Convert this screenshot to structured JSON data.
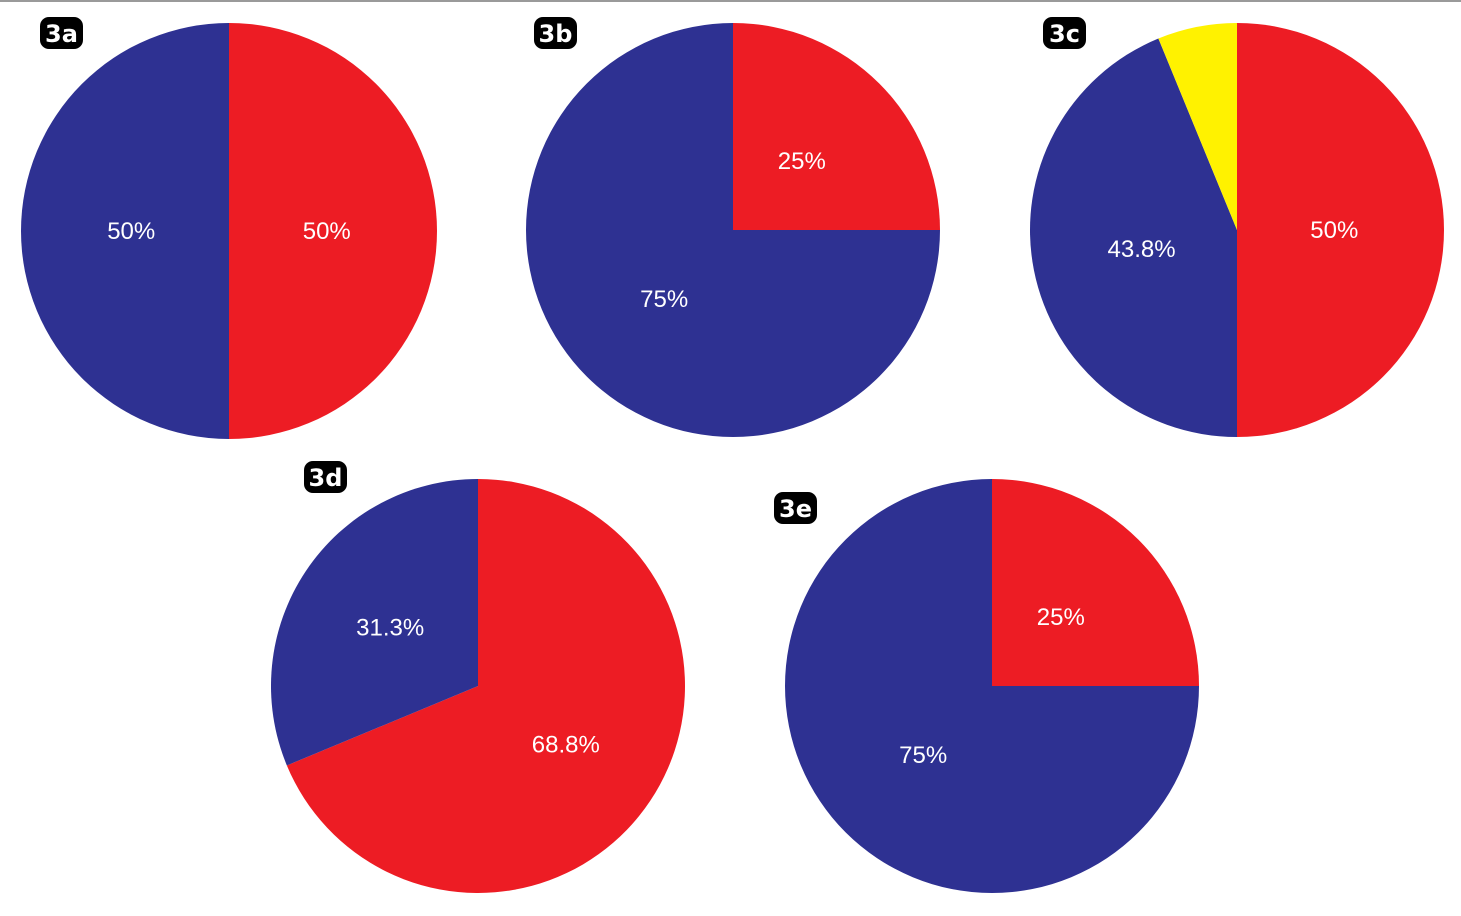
{
  "colors": {
    "red": "#ED1C24",
    "blue": "#2E3192",
    "yellow": "#FFF200",
    "badge": "#000000",
    "label_text": "#FFFFFF"
  },
  "chart_data": [
    {
      "type": "pie",
      "panel": "3a",
      "slices": [
        {
          "label": "50%",
          "value": 50,
          "color": "#ED1C24"
        },
        {
          "label": "50%",
          "value": 50,
          "color": "#2E3192"
        }
      ]
    },
    {
      "type": "pie",
      "panel": "3b",
      "slices": [
        {
          "label": "25%",
          "value": 25,
          "color": "#ED1C24"
        },
        {
          "label": "75%",
          "value": 75,
          "color": "#2E3192"
        }
      ]
    },
    {
      "type": "pie",
      "panel": "3c",
      "slices": [
        {
          "label": "50%",
          "value": 50,
          "color": "#ED1C24"
        },
        {
          "label": "43.8%",
          "value": 43.8,
          "color": "#2E3192"
        },
        {
          "label": "",
          "value": 6.2,
          "color": "#FFF200"
        }
      ]
    },
    {
      "type": "pie",
      "panel": "3d",
      "slices": [
        {
          "label": "68.8%",
          "value": 68.8,
          "color": "#ED1C24"
        },
        {
          "label": "31.3%",
          "value": 31.3,
          "color": "#2E3192"
        }
      ]
    },
    {
      "type": "pie",
      "panel": "3e",
      "slices": [
        {
          "label": "25%",
          "value": 25,
          "color": "#ED1C24"
        },
        {
          "label": "75%",
          "value": 75,
          "color": "#2E3192"
        }
      ]
    }
  ]
}
